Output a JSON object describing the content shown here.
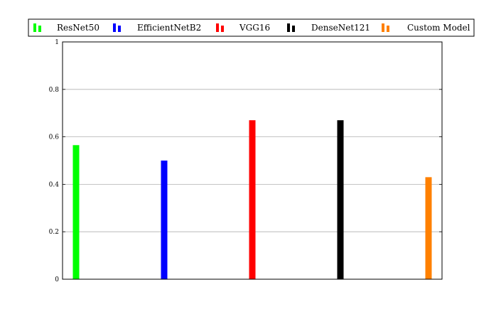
{
  "chart_data": {
    "type": "bar",
    "title": "",
    "xlabel": "",
    "ylabel": "",
    "ylim": [
      0,
      1
    ],
    "yticks": [
      "0",
      "0.2",
      "0.4",
      "0.6",
      "0.8",
      "1"
    ],
    "grid": "horizontal",
    "legend_position": "top",
    "series": [
      {
        "name": "ResNet50",
        "value": 0.565,
        "color": "#00ff00"
      },
      {
        "name": "EfficientNetB2",
        "value": 0.5,
        "color": "#0000ff"
      },
      {
        "name": "VGG16",
        "value": 0.67,
        "color": "#ff0000"
      },
      {
        "name": "DenseNet121",
        "value": 0.67,
        "color": "#000000"
      },
      {
        "name": "Custom Model",
        "value": 0.43,
        "color": "#ff8000"
      }
    ]
  }
}
